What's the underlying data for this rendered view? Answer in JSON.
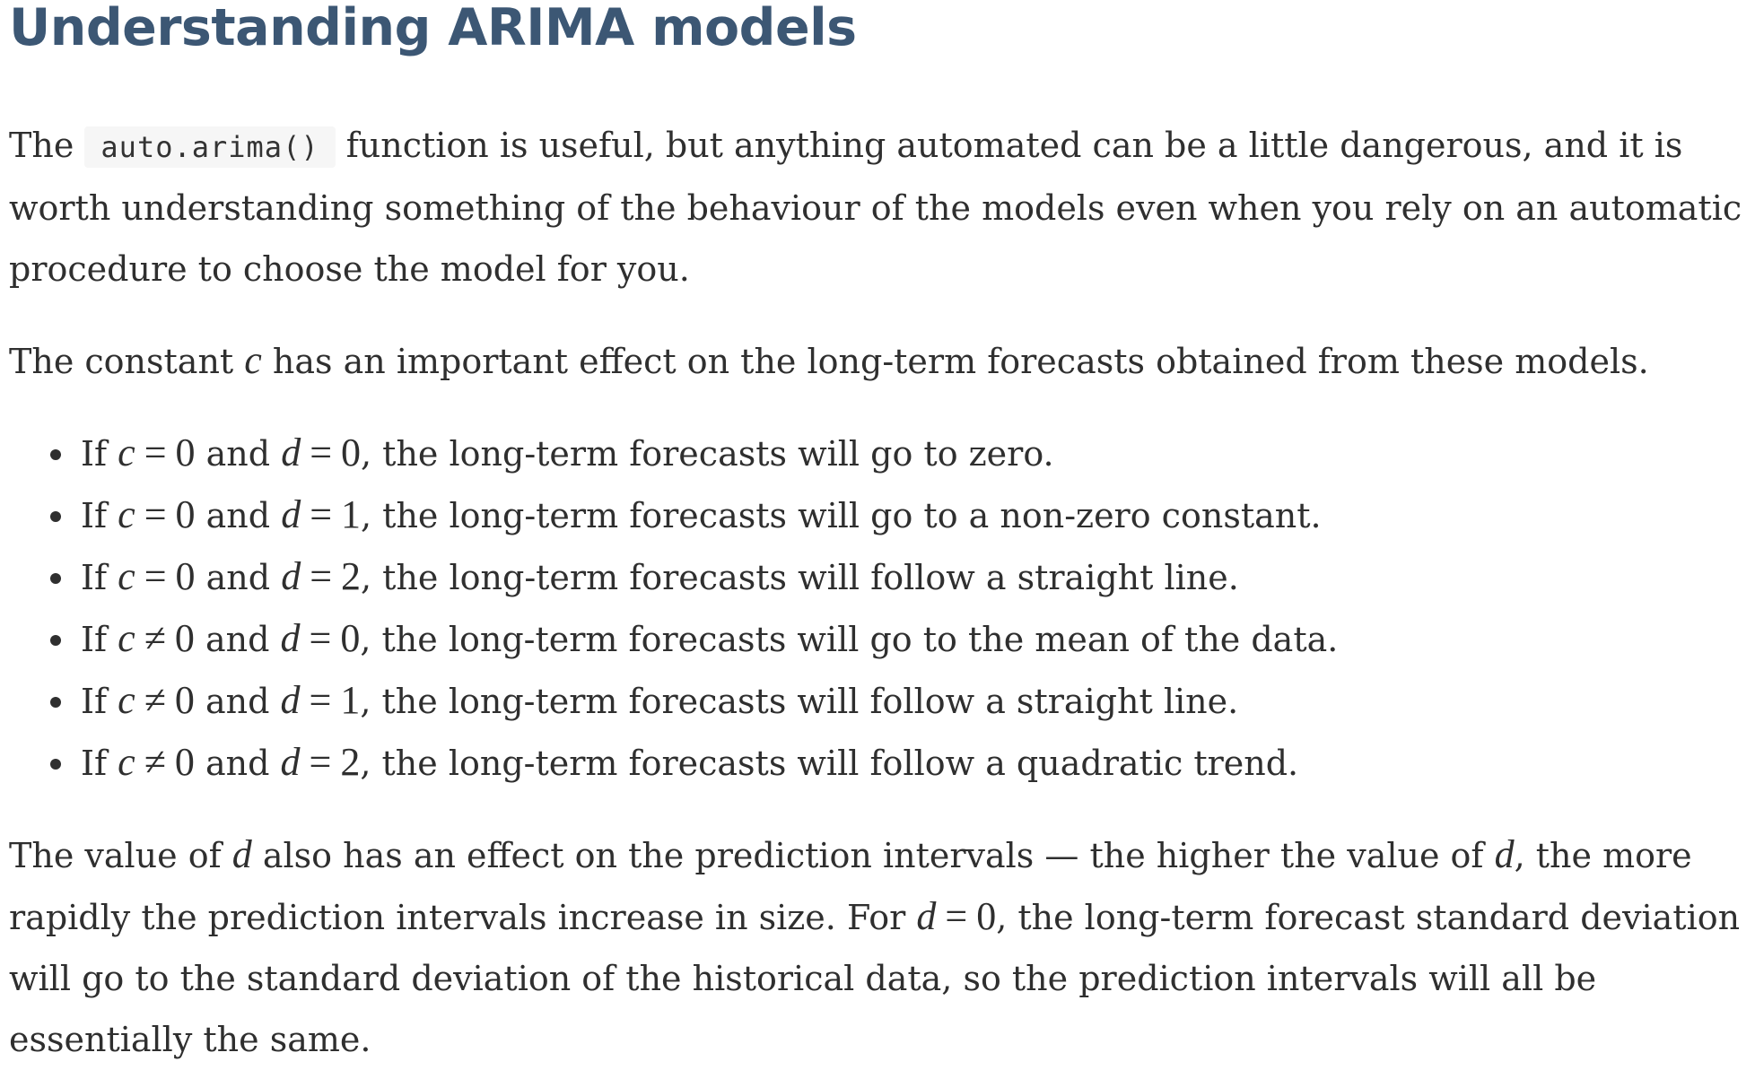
{
  "heading": "Understanding ARIMA models",
  "paragraph1": {
    "before": "The",
    "code": "auto.arima()",
    "after": "function is useful, but anything automated can be a little dangerous, and it is worth understanding something of the behaviour of the models even when you rely on an automatic procedure to choose the model for you."
  },
  "paragraph2": {
    "before": "The constant",
    "var": "c",
    "after": "has an important effect on the long-term forecasts obtained from these models."
  },
  "bullets": [
    {
      "lead": "If",
      "c": "c",
      "op1": "=",
      "cval": "0",
      "and": "and",
      "d": "d",
      "op2": "=",
      "dval": "0",
      "rest": ", the long-term forecasts will go to zero."
    },
    {
      "lead": "If",
      "c": "c",
      "op1": "=",
      "cval": "0",
      "and": "and",
      "d": "d",
      "op2": "=",
      "dval": "1",
      "rest": ", the long-term forecasts will go to a non-zero constant."
    },
    {
      "lead": "If",
      "c": "c",
      "op1": "=",
      "cval": "0",
      "and": "and",
      "d": "d",
      "op2": "=",
      "dval": "2",
      "rest": ", the long-term forecasts will follow a straight line."
    },
    {
      "lead": "If",
      "c": "c",
      "op1": "≠",
      "cval": "0",
      "and": "and",
      "d": "d",
      "op2": "=",
      "dval": "0",
      "rest": ", the long-term forecasts will go to the mean of the data."
    },
    {
      "lead": "If",
      "c": "c",
      "op1": "≠",
      "cval": "0",
      "and": "and",
      "d": "d",
      "op2": "=",
      "dval": "1",
      "rest": ", the long-term forecasts will follow a straight line."
    },
    {
      "lead": "If",
      "c": "c",
      "op1": "≠",
      "cval": "0",
      "and": "and",
      "d": "d",
      "op2": "=",
      "dval": "2",
      "rest": ", the long-term forecasts will follow a quadratic trend."
    }
  ],
  "paragraph3": {
    "t1": "The value of",
    "v1": "d",
    "t2": "also has an effect on the prediction intervals — the higher the value of",
    "v2": "d",
    "t3": ", the more rapidly the prediction intervals increase in size. For",
    "v3": "d",
    "op": "=",
    "num": "0",
    "t4": ", the long-term forecast standard deviation will go to the standard deviation of the historical data, so the prediction intervals will all be essentially the same."
  }
}
